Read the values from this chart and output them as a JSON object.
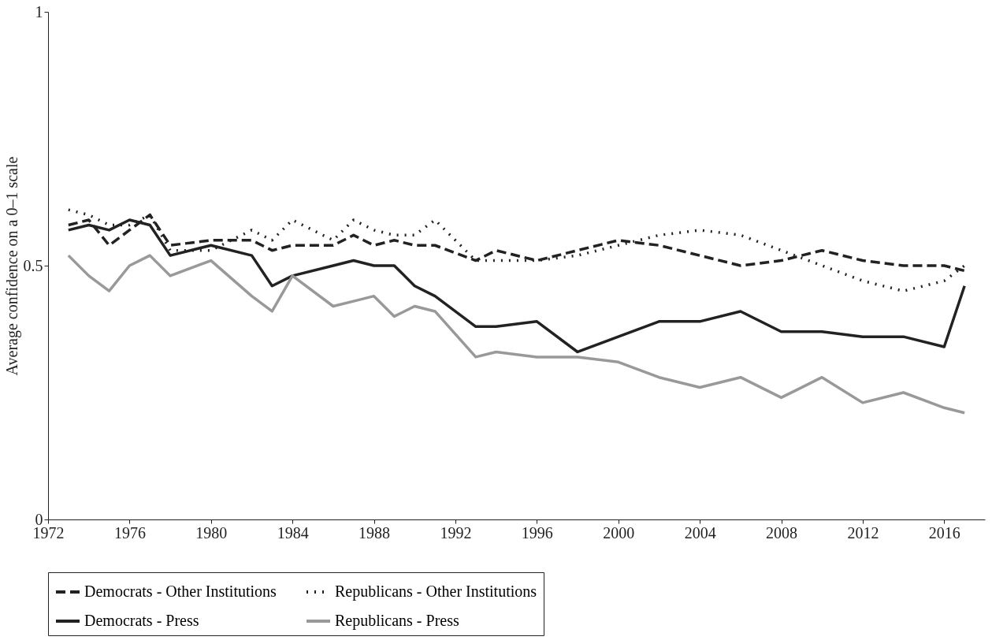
{
  "chart_data": {
    "type": "line",
    "ylabel": "Average confidence on a 0–1 scale",
    "x": [
      1973,
      1974,
      1975,
      1976,
      1977,
      1978,
      1980,
      1982,
      1983,
      1984,
      1986,
      1987,
      1988,
      1989,
      1990,
      1991,
      1993,
      1994,
      1996,
      1998,
      2000,
      2002,
      2004,
      2006,
      2008,
      2010,
      2012,
      2014,
      2016,
      2017
    ],
    "series": [
      {
        "name": "Democrats - Other Institutions",
        "color": "#222222",
        "line_style": "dashed",
        "values": [
          0.58,
          0.59,
          0.54,
          0.57,
          0.6,
          0.54,
          0.55,
          0.55,
          0.53,
          0.54,
          0.54,
          0.56,
          0.54,
          0.55,
          0.54,
          0.54,
          0.51,
          0.53,
          0.51,
          0.53,
          0.55,
          0.54,
          0.52,
          0.5,
          0.51,
          0.53,
          0.51,
          0.5,
          0.5,
          0.49
        ]
      },
      {
        "name": "Republicans - Other Institutions",
        "color": "#222222",
        "line_style": "dotted",
        "values": [
          0.61,
          0.6,
          0.58,
          0.58,
          0.6,
          0.53,
          0.53,
          0.57,
          0.55,
          0.59,
          0.55,
          0.59,
          0.57,
          0.56,
          0.56,
          0.59,
          0.51,
          0.51,
          0.51,
          0.52,
          0.54,
          0.56,
          0.57,
          0.56,
          0.53,
          0.5,
          0.47,
          0.45,
          0.47,
          0.5
        ]
      },
      {
        "name": "Democrats - Press",
        "color": "#222222",
        "line_style": "solid",
        "values": [
          0.57,
          0.58,
          0.57,
          0.59,
          0.58,
          0.52,
          0.54,
          0.52,
          0.46,
          0.48,
          0.5,
          0.51,
          0.5,
          0.5,
          0.46,
          0.44,
          0.38,
          0.38,
          0.39,
          0.33,
          0.36,
          0.39,
          0.39,
          0.41,
          0.37,
          0.37,
          0.36,
          0.36,
          0.34,
          0.46
        ]
      },
      {
        "name": "Republicans - Press",
        "color": "#999999",
        "line_style": "solid",
        "values": [
          0.52,
          0.48,
          0.45,
          0.5,
          0.52,
          0.48,
          0.51,
          0.44,
          0.41,
          0.48,
          0.42,
          0.43,
          0.44,
          0.4,
          0.42,
          0.41,
          0.32,
          0.33,
          0.32,
          0.32,
          0.31,
          0.28,
          0.26,
          0.28,
          0.24,
          0.28,
          0.23,
          0.25,
          0.22,
          0.21
        ]
      }
    ],
    "xlim": [
      1972,
      2018
    ],
    "xticks": [
      1972,
      1976,
      1980,
      1984,
      1988,
      1992,
      1996,
      2000,
      2004,
      2008,
      2012,
      2016
    ],
    "ylim": [
      0,
      1
    ],
    "yticks": [
      0,
      0.5,
      1
    ],
    "grid": false,
    "legend": "bottom",
    "marker": "none"
  }
}
